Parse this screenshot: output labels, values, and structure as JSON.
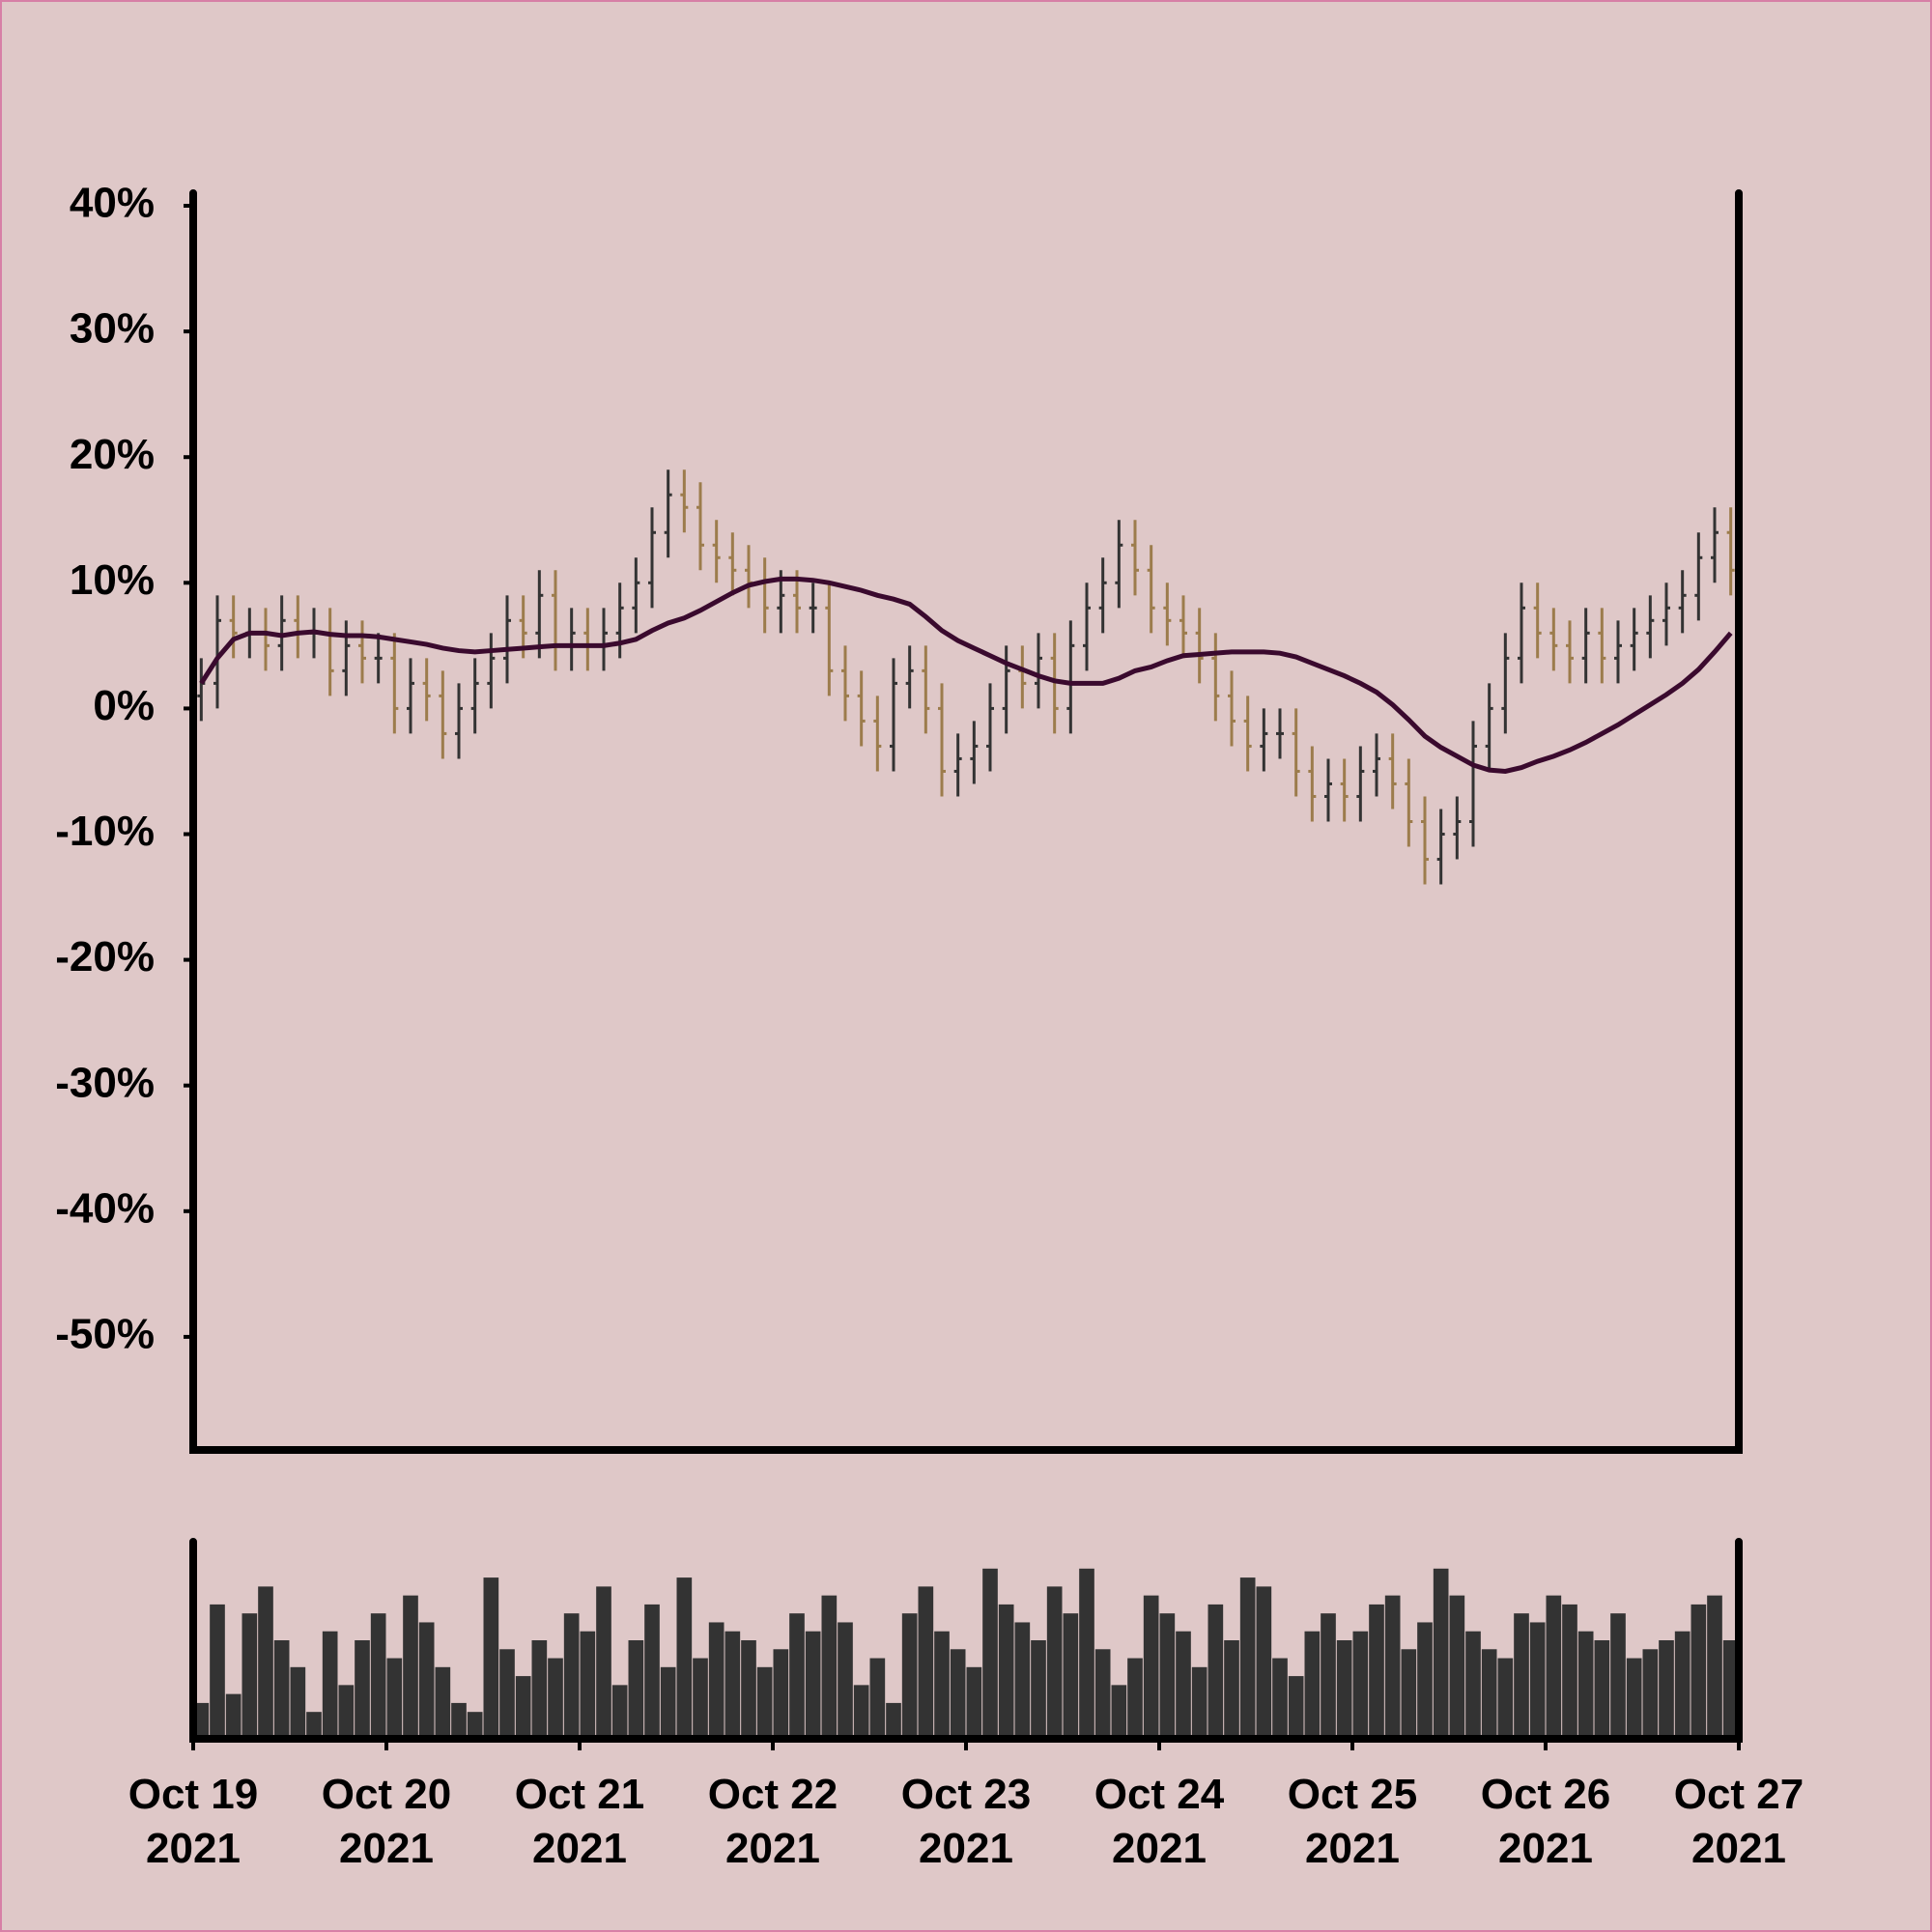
{
  "chart_data": [
    {
      "type": "ohlc",
      "open": [
        1,
        2,
        7,
        6,
        6,
        5,
        7,
        6,
        6,
        3,
        5,
        4,
        4,
        0,
        2,
        1,
        -2,
        0,
        2,
        4,
        7,
        6,
        9,
        5,
        6,
        5,
        6,
        8,
        10,
        14,
        17,
        16,
        13,
        12,
        11,
        10,
        8,
        9,
        8,
        8,
        3,
        1,
        -1,
        -3,
        2,
        3,
        0,
        -5,
        -4,
        -3,
        0,
        3,
        2,
        4,
        0,
        5,
        8,
        10,
        13,
        11,
        8,
        7,
        6,
        4,
        1,
        -1,
        -3,
        -2,
        -2,
        -5,
        -7,
        -6,
        -7,
        -5,
        -4,
        -6,
        -9,
        -12,
        -10,
        -9,
        -3,
        0,
        4,
        8,
        6,
        5,
        4,
        6,
        4,
        5,
        6,
        7,
        8,
        9,
        12,
        14
      ],
      "high": [
        4,
        9,
        9,
        8,
        8,
        9,
        9,
        8,
        8,
        7,
        7,
        6,
        6,
        4,
        4,
        3,
        2,
        4,
        6,
        9,
        9,
        11,
        11,
        8,
        8,
        8,
        10,
        12,
        16,
        19,
        19,
        18,
        15,
        14,
        13,
        12,
        11,
        11,
        10,
        10,
        5,
        3,
        1,
        4,
        5,
        5,
        2,
        -2,
        -1,
        2,
        5,
        5,
        6,
        6,
        7,
        10,
        12,
        15,
        15,
        13,
        10,
        9,
        8,
        6,
        3,
        1,
        0,
        0,
        0,
        -3,
        -4,
        -4,
        -3,
        -2,
        -2,
        -4,
        -7,
        -8,
        -7,
        -1,
        2,
        6,
        10,
        10,
        8,
        7,
        8,
        8,
        7,
        8,
        9,
        10,
        11,
        14,
        16,
        16
      ],
      "low": [
        -1,
        0,
        4,
        4,
        3,
        3,
        4,
        4,
        1,
        1,
        2,
        2,
        -2,
        -2,
        -1,
        -4,
        -4,
        -2,
        0,
        2,
        4,
        4,
        3,
        3,
        3,
        3,
        4,
        6,
        8,
        12,
        14,
        11,
        10,
        9,
        8,
        6,
        6,
        6,
        6,
        1,
        -1,
        -3,
        -5,
        -5,
        0,
        -2,
        -7,
        -7,
        -6,
        -5,
        -2,
        0,
        0,
        -2,
        -2,
        3,
        6,
        8,
        9,
        6,
        5,
        4,
        2,
        -1,
        -3,
        -5,
        -5,
        -4,
        -7,
        -9,
        -9,
        -9,
        -9,
        -7,
        -8,
        -11,
        -14,
        -14,
        -12,
        -11,
        -5,
        -2,
        2,
        4,
        3,
        2,
        2,
        2,
        2,
        3,
        4,
        5,
        6,
        7,
        10,
        9
      ],
      "close": [
        2,
        7,
        6,
        6,
        5,
        7,
        6,
        6,
        3,
        5,
        4,
        4,
        0,
        2,
        1,
        -2,
        0,
        2,
        4,
        7,
        6,
        9,
        5,
        6,
        5,
        6,
        8,
        10,
        14,
        17,
        16,
        13,
        12,
        11,
        10,
        8,
        9,
        8,
        8,
        3,
        1,
        -1,
        -3,
        2,
        3,
        0,
        -5,
        -4,
        -3,
        0,
        3,
        2,
        4,
        0,
        5,
        8,
        10,
        13,
        11,
        8,
        7,
        6,
        4,
        1,
        -1,
        -3,
        -2,
        -2,
        -5,
        -7,
        -6,
        -7,
        -5,
        -4,
        -6,
        -9,
        -12,
        -10,
        -9,
        -3,
        0,
        4,
        8,
        6,
        5,
        4,
        6,
        4,
        5,
        6,
        7,
        8,
        9,
        12,
        14,
        11
      ],
      "moving_average": [
        2,
        4,
        5.5,
        6,
        6,
        5.8,
        6,
        6.1,
        5.9,
        5.8,
        5.8,
        5.7,
        5.5,
        5.3,
        5.1,
        4.8,
        4.6,
        4.5,
        4.6,
        4.7,
        4.8,
        4.9,
        5,
        5,
        5,
        5,
        5.2,
        5.5,
        6.2,
        6.8,
        7.2,
        7.8,
        8.5,
        9.2,
        9.8,
        10.1,
        10.3,
        10.3,
        10.2,
        10,
        9.7,
        9.4,
        9,
        8.7,
        8.3,
        7.3,
        6.2,
        5.4,
        4.8,
        4.2,
        3.6,
        3.1,
        2.6,
        2.2,
        2,
        2,
        2,
        2.4,
        3,
        3.3,
        3.8,
        4.2,
        4.3,
        4.4,
        4.5,
        4.5,
        4.5,
        4.4,
        4.1,
        3.6,
        3.1,
        2.6,
        2,
        1.3,
        0.3,
        -0.9,
        -2.2,
        -3.1,
        -3.8,
        -4.5,
        -4.9,
        -5,
        -4.7,
        -4.2,
        -3.8,
        -3.3,
        -2.7,
        -2,
        -1.3,
        -0.5,
        0.3,
        1.1,
        2,
        3.1,
        4.5,
        6
      ],
      "up_color": "#333333",
      "down_color": "#9c7c4c",
      "line_color": "#3a0a2e",
      "xlim": [
        0,
        96
      ],
      "ylim": [
        -59,
        41
      ],
      "yticks": [
        {
          "value": 40,
          "label": "40%"
        },
        {
          "value": 30,
          "label": "30%"
        },
        {
          "value": 20,
          "label": "20%"
        },
        {
          "value": 10,
          "label": "10%"
        },
        {
          "value": 0,
          "label": "0%"
        },
        {
          "value": -10,
          "label": "-10%"
        },
        {
          "value": -20,
          "label": "-20%"
        },
        {
          "value": -30,
          "label": "-30%"
        },
        {
          "value": -40,
          "label": "-40%"
        },
        {
          "value": -50,
          "label": "-50%"
        }
      ]
    },
    {
      "type": "bar",
      "values": [
        20,
        75,
        25,
        70,
        85,
        55,
        40,
        15,
        60,
        30,
        55,
        70,
        45,
        80,
        65,
        40,
        20,
        15,
        90,
        50,
        35,
        55,
        45,
        70,
        60,
        85,
        30,
        55,
        75,
        40,
        90,
        45,
        65,
        60,
        55,
        40,
        50,
        70,
        60,
        80,
        65,
        30,
        45,
        20,
        70,
        85,
        60,
        50,
        40,
        95,
        75,
        65,
        55,
        85,
        70,
        95,
        50,
        30,
        45,
        80,
        70,
        60,
        40,
        75,
        55,
        90,
        85,
        45,
        35,
        60,
        70,
        55,
        60,
        75,
        80,
        50,
        65,
        95,
        80,
        60,
        50,
        45,
        70,
        65,
        80,
        75,
        60,
        55,
        70,
        45,
        50,
        55,
        60,
        75,
        80,
        55
      ],
      "color": "#333333",
      "xlim": [
        0,
        96
      ],
      "ylim": [
        0,
        110
      ],
      "xticks": [
        {
          "value": 0,
          "label": "Oct 19\n2021"
        },
        {
          "value": 12,
          "label": "Oct 20\n2021"
        },
        {
          "value": 24,
          "label": "Oct 21\n2021"
        },
        {
          "value": 36,
          "label": "Oct 22\n2021"
        },
        {
          "value": 48,
          "label": "Oct 23\n2021"
        },
        {
          "value": 60,
          "label": "Oct 24\n2021"
        },
        {
          "value": 72,
          "label": "Oct 25\n2021"
        },
        {
          "value": 84,
          "label": "Oct 26\n2021"
        },
        {
          "value": 96,
          "label": "Oct 27\n2021"
        }
      ]
    }
  ]
}
